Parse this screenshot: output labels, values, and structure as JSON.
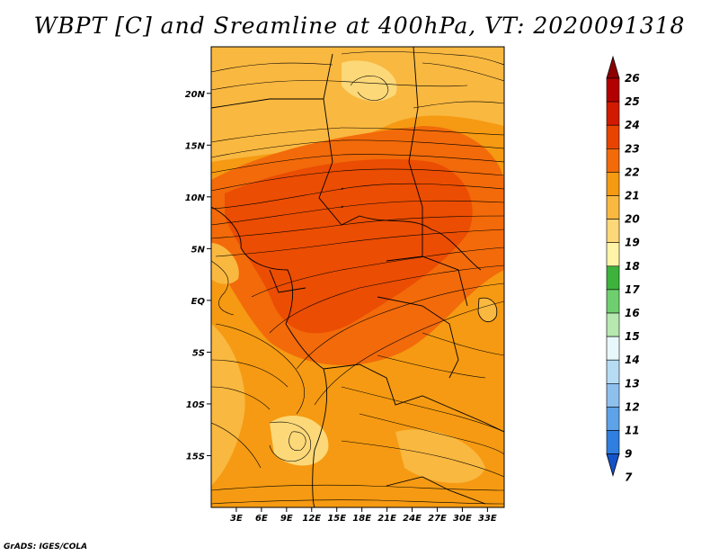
{
  "title": "WBPT [C] and Sreamline at 400hPa, VT: 2020091318",
  "credit": "GrADS: IGES/COLA",
  "map": {
    "lon_range": [
      0,
      35
    ],
    "lat_range": [
      -20,
      24.5
    ],
    "y_ticks": [
      {
        "label": "20N",
        "value": 20
      },
      {
        "label": "15N",
        "value": 15
      },
      {
        "label": "10N",
        "value": 10
      },
      {
        "label": "5N",
        "value": 5
      },
      {
        "label": "EQ",
        "value": 0
      },
      {
        "label": "5S",
        "value": -5
      },
      {
        "label": "10S",
        "value": -10
      },
      {
        "label": "15S",
        "value": -15
      }
    ],
    "x_ticks": [
      {
        "label": "3E",
        "value": 3
      },
      {
        "label": "6E",
        "value": 6
      },
      {
        "label": "9E",
        "value": 9
      },
      {
        "label": "12E",
        "value": 12
      },
      {
        "label": "15E",
        "value": 15
      },
      {
        "label": "18E",
        "value": 18
      },
      {
        "label": "21E",
        "value": 21
      },
      {
        "label": "24E",
        "value": 24
      },
      {
        "label": "27E",
        "value": 27
      },
      {
        "label": "30E",
        "value": 30
      },
      {
        "label": "33E",
        "value": 33
      }
    ]
  },
  "colorbar": {
    "levels": [
      {
        "label": "26",
        "color": "#8c0000"
      },
      {
        "label": "25",
        "color": "#b20000"
      },
      {
        "label": "24",
        "color": "#d21a00"
      },
      {
        "label": "23",
        "color": "#e84400"
      },
      {
        "label": "22",
        "color": "#f26a0a"
      },
      {
        "label": "21",
        "color": "#f59a12"
      },
      {
        "label": "20",
        "color": "#f9b840"
      },
      {
        "label": "19",
        "color": "#fcd878"
      },
      {
        "label": "18",
        "color": "#fff3a8"
      },
      {
        "label": "17",
        "color": "#3db33d"
      },
      {
        "label": "16",
        "color": "#6fcf6f"
      },
      {
        "label": "15",
        "color": "#b6e8b0"
      },
      {
        "label": "14",
        "color": "#e8f8fa"
      },
      {
        "label": "13",
        "color": "#b6dcf4"
      },
      {
        "label": "12",
        "color": "#8ec0ee"
      },
      {
        "label": "11",
        "color": "#5ea2e8"
      },
      {
        "label": "9",
        "color": "#2f7ee0"
      },
      {
        "label": "7",
        "color": "#1452c8"
      }
    ]
  }
}
